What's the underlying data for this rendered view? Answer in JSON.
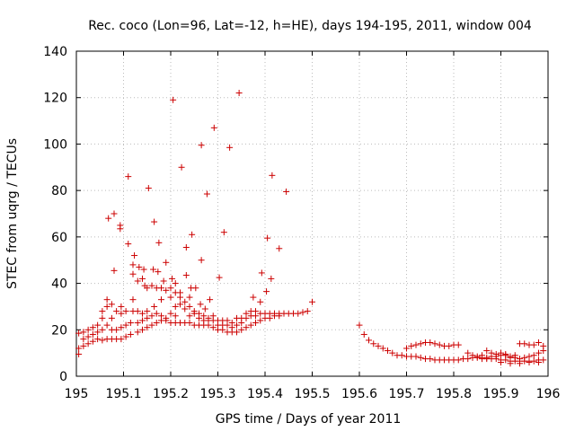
{
  "chart_data": {
    "type": "scatter",
    "title": "Rec. coco (Lon=96, Lat=-12, h=HE), days 194-195, 2011, window 004",
    "xlabel": "GPS time / Days of year 2011",
    "ylabel": "STEC from uqrg / TECUs",
    "xlim": [
      195,
      196
    ],
    "ylim": [
      0,
      140
    ],
    "xticks": [
      "195",
      "195.1",
      "195.2",
      "195.3",
      "195.4",
      "195.5",
      "195.6",
      "195.7",
      "195.8",
      "195.9",
      "196"
    ],
    "yticks": [
      "0",
      "20",
      "40",
      "60",
      "80",
      "100",
      "120",
      "140"
    ],
    "grid": true,
    "marker": "plus",
    "color": "#cc0000",
    "points": [
      [
        195.005,
        18.5
      ],
      [
        195.005,
        12
      ],
      [
        195.005,
        9.5
      ],
      [
        195.015,
        13
      ],
      [
        195.015,
        16
      ],
      [
        195.015,
        19
      ],
      [
        195.025,
        14
      ],
      [
        195.025,
        17
      ],
      [
        195.025,
        20
      ],
      [
        195.035,
        15
      ],
      [
        195.035,
        18
      ],
      [
        195.035,
        21
      ],
      [
        195.045,
        16
      ],
      [
        195.045,
        19
      ],
      [
        195.045,
        22
      ],
      [
        195.055,
        15.5
      ],
      [
        195.055,
        20
      ],
      [
        195.055,
        25
      ],
      [
        195.055,
        28
      ],
      [
        195.065,
        16
      ],
      [
        195.065,
        22
      ],
      [
        195.065,
        30
      ],
      [
        195.065,
        33
      ],
      [
        195.068,
        68
      ],
      [
        195.075,
        16
      ],
      [
        195.075,
        20
      ],
      [
        195.075,
        25
      ],
      [
        195.075,
        31
      ],
      [
        195.08,
        70
      ],
      [
        195.08,
        45.5
      ],
      [
        195.085,
        16
      ],
      [
        195.085,
        20
      ],
      [
        195.085,
        28
      ],
      [
        195.095,
        16
      ],
      [
        195.095,
        21
      ],
      [
        195.095,
        27
      ],
      [
        195.095,
        30
      ],
      [
        195.093,
        63.5
      ],
      [
        195.093,
        65
      ],
      [
        195.105,
        17
      ],
      [
        195.105,
        22
      ],
      [
        195.105,
        28
      ],
      [
        195.11,
        57
      ],
      [
        195.11,
        86
      ],
      [
        195.115,
        18
      ],
      [
        195.115,
        23
      ],
      [
        195.12,
        28
      ],
      [
        195.12,
        33
      ],
      [
        195.12,
        44
      ],
      [
        195.12,
        48
      ],
      [
        195.123,
        52
      ],
      [
        195.13,
        19
      ],
      [
        195.13,
        23
      ],
      [
        195.13,
        28
      ],
      [
        195.13,
        41
      ],
      [
        195.133,
        47
      ],
      [
        195.14,
        20
      ],
      [
        195.14,
        24
      ],
      [
        195.14,
        27
      ],
      [
        195.14,
        42
      ],
      [
        195.143,
        46
      ],
      [
        195.145,
        39
      ],
      [
        195.15,
        21
      ],
      [
        195.15,
        25
      ],
      [
        195.15,
        28
      ],
      [
        195.15,
        38
      ],
      [
        195.153,
        81
      ],
      [
        195.16,
        22
      ],
      [
        195.16,
        26
      ],
      [
        195.16,
        39
      ],
      [
        195.163,
        46
      ],
      [
        195.165,
        66.5
      ],
      [
        195.165,
        30
      ],
      [
        195.17,
        23
      ],
      [
        195.17,
        27
      ],
      [
        195.17,
        38
      ],
      [
        195.173,
        45
      ],
      [
        195.175,
        57.5
      ],
      [
        195.18,
        24
      ],
      [
        195.18,
        26
      ],
      [
        195.18,
        33
      ],
      [
        195.18,
        38
      ],
      [
        195.185,
        41
      ],
      [
        195.19,
        24
      ],
      [
        195.19,
        25
      ],
      [
        195.19,
        37
      ],
      [
        195.19,
        49
      ],
      [
        195.2,
        23
      ],
      [
        195.2,
        27
      ],
      [
        195.2,
        34
      ],
      [
        195.2,
        38
      ],
      [
        195.203,
        42
      ],
      [
        195.205,
        119
      ],
      [
        195.21,
        23
      ],
      [
        195.21,
        26
      ],
      [
        195.21,
        30
      ],
      [
        195.21,
        36
      ],
      [
        195.21,
        40
      ],
      [
        195.22,
        23
      ],
      [
        195.22,
        31
      ],
      [
        195.22,
        34
      ],
      [
        195.22,
        36
      ],
      [
        195.223,
        90
      ],
      [
        195.23,
        23
      ],
      [
        195.23,
        29
      ],
      [
        195.23,
        32
      ],
      [
        195.233,
        43.5
      ],
      [
        195.233,
        55.5
      ],
      [
        195.24,
        23
      ],
      [
        195.24,
        26
      ],
      [
        195.24,
        30
      ],
      [
        195.24,
        34
      ],
      [
        195.243,
        38
      ],
      [
        195.245,
        61
      ],
      [
        195.25,
        22
      ],
      [
        195.25,
        27
      ],
      [
        195.25,
        28
      ],
      [
        195.253,
        38
      ],
      [
        195.26,
        22
      ],
      [
        195.26,
        25
      ],
      [
        195.26,
        27
      ],
      [
        195.263,
        31
      ],
      [
        195.265,
        50
      ],
      [
        195.265,
        99.5
      ],
      [
        195.27,
        22
      ],
      [
        195.27,
        24
      ],
      [
        195.27,
        26
      ],
      [
        195.273,
        29
      ],
      [
        195.277,
        78.5
      ],
      [
        195.28,
        22
      ],
      [
        195.28,
        24
      ],
      [
        195.28,
        25
      ],
      [
        195.283,
        33
      ],
      [
        195.29,
        21
      ],
      [
        195.29,
        24
      ],
      [
        195.29,
        26
      ],
      [
        195.292,
        107
      ],
      [
        195.3,
        20
      ],
      [
        195.3,
        22
      ],
      [
        195.3,
        24
      ],
      [
        195.303,
        42.5
      ],
      [
        195.31,
        20
      ],
      [
        195.31,
        22
      ],
      [
        195.31,
        24
      ],
      [
        195.313,
        62
      ],
      [
        195.32,
        19
      ],
      [
        195.32,
        22
      ],
      [
        195.32,
        24
      ],
      [
        195.325,
        98.5
      ],
      [
        195.33,
        19
      ],
      [
        195.33,
        21
      ],
      [
        195.33,
        23
      ],
      [
        195.34,
        19
      ],
      [
        195.34,
        22
      ],
      [
        195.34,
        25
      ],
      [
        195.345,
        122
      ],
      [
        195.35,
        20
      ],
      [
        195.35,
        23
      ],
      [
        195.35,
        25
      ],
      [
        195.36,
        21
      ],
      [
        195.36,
        25
      ],
      [
        195.36,
        27
      ],
      [
        195.37,
        22
      ],
      [
        195.37,
        26
      ],
      [
        195.37,
        28
      ],
      [
        195.375,
        34
      ],
      [
        195.38,
        23
      ],
      [
        195.38,
        26
      ],
      [
        195.38,
        28
      ],
      [
        195.39,
        24
      ],
      [
        195.39,
        27
      ],
      [
        195.39,
        32
      ],
      [
        195.393,
        44.5
      ],
      [
        195.4,
        25
      ],
      [
        195.4,
        27
      ],
      [
        195.403,
        36.5
      ],
      [
        195.405,
        59.5
      ],
      [
        195.41,
        25
      ],
      [
        195.41,
        27
      ],
      [
        195.413,
        42
      ],
      [
        195.415,
        86.5
      ],
      [
        195.42,
        26
      ],
      [
        195.42,
        27
      ],
      [
        195.43,
        27
      ],
      [
        195.43,
        26
      ],
      [
        195.43,
        55
      ],
      [
        195.44,
        27
      ],
      [
        195.445,
        79.5
      ],
      [
        195.45,
        27
      ],
      [
        195.46,
        27
      ],
      [
        195.47,
        27
      ],
      [
        195.48,
        27.5
      ],
      [
        195.49,
        28
      ],
      [
        195.5,
        32
      ],
      [
        195.6,
        22
      ],
      [
        195.61,
        18
      ],
      [
        195.62,
        15.5
      ],
      [
        195.63,
        14
      ],
      [
        195.64,
        13
      ],
      [
        195.65,
        12
      ],
      [
        195.66,
        11
      ],
      [
        195.67,
        10
      ],
      [
        195.68,
        9
      ],
      [
        195.69,
        9
      ],
      [
        195.7,
        8.5
      ],
      [
        195.71,
        8.5
      ],
      [
        195.72,
        8.5
      ],
      [
        195.73,
        8
      ],
      [
        195.74,
        7.5
      ],
      [
        195.75,
        7.5
      ],
      [
        195.76,
        7
      ],
      [
        195.77,
        7
      ],
      [
        195.78,
        7
      ],
      [
        195.79,
        7
      ],
      [
        195.8,
        7
      ],
      [
        195.81,
        7
      ],
      [
        195.82,
        7.5
      ],
      [
        195.83,
        7.5
      ],
      [
        195.84,
        8
      ],
      [
        195.85,
        8
      ],
      [
        195.86,
        8
      ],
      [
        195.87,
        8
      ],
      [
        195.88,
        7.5
      ],
      [
        195.89,
        7.5
      ],
      [
        195.9,
        7
      ],
      [
        195.91,
        7
      ],
      [
        195.92,
        6.5
      ],
      [
        195.93,
        6.5
      ],
      [
        195.94,
        6.5
      ],
      [
        195.95,
        6.5
      ],
      [
        195.96,
        6.5
      ],
      [
        195.97,
        6.5
      ],
      [
        195.98,
        7
      ],
      [
        195.99,
        7
      ],
      [
        195.7,
        12
      ],
      [
        195.71,
        13
      ],
      [
        195.72,
        13.5
      ],
      [
        195.73,
        14
      ],
      [
        195.74,
        14.5
      ],
      [
        195.75,
        14.5
      ],
      [
        195.76,
        14
      ],
      [
        195.77,
        13.5
      ],
      [
        195.78,
        13
      ],
      [
        195.79,
        13
      ],
      [
        195.8,
        13.5
      ],
      [
        195.81,
        13.5
      ],
      [
        195.83,
        10
      ],
      [
        195.84,
        9
      ],
      [
        195.85,
        8.5
      ],
      [
        195.86,
        9
      ],
      [
        195.87,
        11
      ],
      [
        195.88,
        10
      ],
      [
        195.89,
        9.5
      ],
      [
        195.9,
        9
      ],
      [
        195.91,
        9
      ],
      [
        195.92,
        8.5
      ],
      [
        195.93,
        9
      ],
      [
        195.94,
        14
      ],
      [
        195.95,
        14
      ],
      [
        195.96,
        13.5
      ],
      [
        195.97,
        13.5
      ],
      [
        195.98,
        14.5
      ],
      [
        195.99,
        13
      ],
      [
        195.86,
        7.5
      ],
      [
        195.87,
        7.5
      ],
      [
        195.88,
        8.5
      ],
      [
        195.89,
        8.5
      ],
      [
        195.9,
        10
      ],
      [
        195.91,
        9.5
      ],
      [
        195.92,
        8
      ],
      [
        195.93,
        8
      ],
      [
        195.94,
        7.5
      ],
      [
        195.95,
        8
      ],
      [
        195.96,
        8.5
      ],
      [
        195.97,
        9
      ],
      [
        195.98,
        10
      ],
      [
        195.99,
        11
      ],
      [
        195.9,
        6
      ],
      [
        195.92,
        5.5
      ],
      [
        195.94,
        5.5
      ],
      [
        195.96,
        6
      ],
      [
        195.98,
        6
      ]
    ]
  }
}
